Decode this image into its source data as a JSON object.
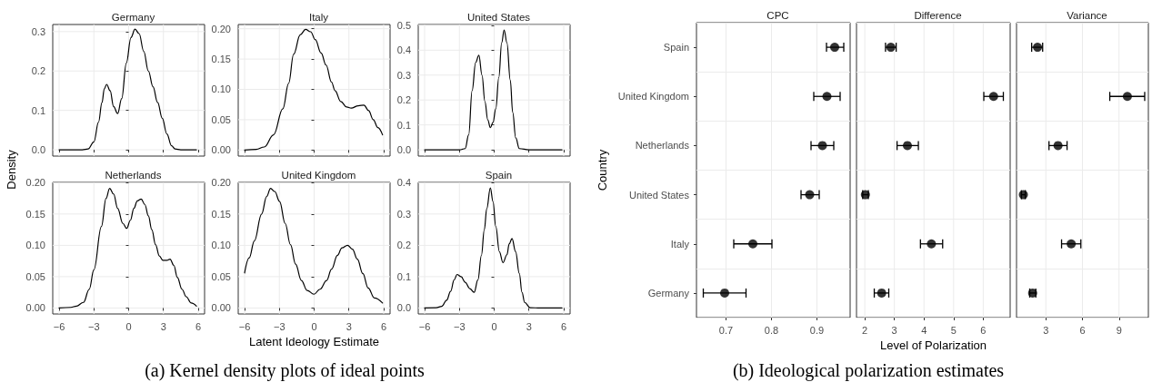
{
  "chart_data": [
    {
      "type": "line",
      "title": "Germany",
      "ylabel": "Density",
      "annotations": [
        "(a) Kernel density plots of ideal points"
      ],
      "color": "#000000",
      "marker": "none",
      "grid": true,
      "tick_labels": "y",
      "x": [
        -6,
        -4,
        -3.5,
        -3,
        -2.6,
        -2.3,
        -2.1,
        -1.9,
        -1.6,
        -1.3,
        -0.95,
        -0.6,
        -0.2,
        0.2,
        0.55,
        0.9,
        1.3,
        1.7,
        2.1,
        2.5,
        2.9,
        3.3,
        3.7,
        4.0,
        4.5,
        5.0,
        5.85
      ],
      "values": [
        0,
        0,
        0.002,
        0.02,
        0.07,
        0.12,
        0.155,
        0.166,
        0.15,
        0.11,
        0.092,
        0.13,
        0.22,
        0.285,
        0.306,
        0.295,
        0.25,
        0.2,
        0.16,
        0.12,
        0.08,
        0.04,
        0.01,
        0.002,
        0,
        0,
        0
      ],
      "xlim": [
        -6.55,
        6.55
      ],
      "xticks": [
        -6,
        -3,
        0,
        3,
        6
      ],
      "ylim": [
        -0.016,
        0.318
      ],
      "yticks": [
        {
          "value": 0,
          "label": "0.0"
        },
        0.1,
        0.2,
        0.3
      ]
    },
    {
      "type": "line",
      "title": "Italy",
      "color": "#000000",
      "marker": "none",
      "grid": true,
      "tick_labels": "y",
      "x": [
        -6,
        -5,
        -4.3,
        -3.5,
        -2.7,
        -2.2,
        -1.77,
        -1.2,
        -0.74,
        -0.3,
        0.1,
        0.6,
        1.03,
        1.5,
        1.8,
        2.3,
        2.8,
        3.2,
        3.8,
        4.3,
        4.7,
        5.1,
        5.5,
        5.9
      ],
      "values": [
        0,
        0.001,
        0.005,
        0.025,
        0.068,
        0.11,
        0.158,
        0.19,
        0.199,
        0.195,
        0.182,
        0.16,
        0.14,
        0.112,
        0.098,
        0.08,
        0.071,
        0.069,
        0.073,
        0.074,
        0.065,
        0.05,
        0.037,
        0.025
      ],
      "xlim": [
        -6.55,
        6.55
      ],
      "xticks": [
        -6,
        -3,
        0,
        3,
        6
      ],
      "ylim": [
        -0.01,
        0.207
      ],
      "yticks": [
        {
          "value": 0,
          "label": "0.00"
        },
        {
          "value": 0.05,
          "label": "0.05"
        },
        {
          "value": 0.1,
          "label": "0.10"
        },
        {
          "value": 0.15,
          "label": "0.15"
        },
        {
          "value": 0.2,
          "label": "0.20"
        }
      ]
    },
    {
      "type": "line",
      "title": "United States",
      "color": "#000000",
      "marker": "none",
      "grid": true,
      "tick_labels": "y",
      "x": [
        -6,
        -3,
        -2.5,
        -2.2,
        -1.9,
        -1.6,
        -1.32,
        -1.05,
        -0.8,
        -0.55,
        -0.33,
        -0.1,
        0.14,
        0.4,
        0.65,
        0.86,
        1.1,
        1.39,
        1.6,
        1.86,
        2.17,
        3,
        5.85
      ],
      "values": [
        0,
        0,
        0.005,
        0.06,
        0.238,
        0.35,
        0.38,
        0.3,
        0.194,
        0.12,
        0.089,
        0.11,
        0.165,
        0.29,
        0.43,
        0.481,
        0.43,
        0.28,
        0.15,
        0.048,
        0.005,
        0,
        0
      ],
      "xlim": [
        -6.55,
        6.55
      ],
      "xticks": [
        -6,
        -3,
        0,
        3,
        6
      ],
      "ylim": [
        -0.025,
        0.503
      ],
      "yticks": [
        {
          "value": 0,
          "label": "0.0"
        },
        0.1,
        0.2,
        0.3,
        0.4,
        0.5
      ]
    },
    {
      "type": "line",
      "title": "Netherlands",
      "color": "#000000",
      "marker": "none",
      "grid": true,
      "x": [
        -6,
        -5,
        -4.5,
        -3.9,
        -3.4,
        -3,
        -2.35,
        -1.95,
        -1.64,
        -1.3,
        -0.95,
        -0.5,
        -0.17,
        0.15,
        0.45,
        0.75,
        1.08,
        1.4,
        1.7,
        2.0,
        2.32,
        2.65,
        2.95,
        3.3,
        3.57,
        3.9,
        4.2,
        4.6,
        4.97,
        5.4,
        5.85
      ],
      "values": [
        0,
        0.001,
        0.003,
        0.009,
        0.03,
        0.061,
        0.13,
        0.175,
        0.191,
        0.182,
        0.159,
        0.135,
        0.127,
        0.14,
        0.159,
        0.171,
        0.174,
        0.165,
        0.147,
        0.125,
        0.101,
        0.083,
        0.076,
        0.076,
        0.078,
        0.068,
        0.049,
        0.03,
        0.018,
        0.008,
        0.003
      ],
      "xlim": [
        -6.55,
        6.55
      ],
      "xticks": [
        -6,
        -3,
        0,
        3,
        6
      ],
      "ylim": [
        -0.0095,
        0.2005
      ],
      "yticks": [
        {
          "value": 0,
          "label": "0.00"
        },
        {
          "value": 0.05,
          "label": "0.05"
        },
        {
          "value": 0.1,
          "label": "0.10"
        },
        {
          "value": 0.15,
          "label": "0.15"
        },
        {
          "value": 0.2,
          "label": "0.20"
        }
      ]
    },
    {
      "type": "line",
      "title": "United Kingdom",
      "xlabel": "Latent Ideology Estimate",
      "color": "#000000",
      "marker": "none",
      "grid": true,
      "x": [
        -6,
        -5.6,
        -5.16,
        -4.53,
        -4.1,
        -3.76,
        -3.4,
        -2.98,
        -2.5,
        -2.04,
        -1.6,
        -1.1,
        -0.6,
        -0.015,
        0.5,
        1.08,
        1.5,
        2.01,
        2.4,
        2.88,
        3.3,
        3.73,
        4.2,
        4.66,
        5.2,
        5.9
      ],
      "values": [
        0.056,
        0.08,
        0.107,
        0.15,
        0.178,
        0.191,
        0.186,
        0.17,
        0.135,
        0.101,
        0.07,
        0.044,
        0.028,
        0.022,
        0.03,
        0.044,
        0.062,
        0.084,
        0.096,
        0.1,
        0.094,
        0.078,
        0.055,
        0.032,
        0.016,
        0.008
      ],
      "xlim": [
        -6.55,
        6.55
      ],
      "xticks": [
        -6,
        -3,
        0,
        3,
        6
      ],
      "ylim": [
        -0.0095,
        0.2005
      ],
      "yticks": [
        {
          "value": 0,
          "label": "0.00"
        },
        {
          "value": 0.05,
          "label": "0.05"
        },
        {
          "value": 0.1,
          "label": "0.10"
        },
        {
          "value": 0.15,
          "label": "0.15"
        },
        {
          "value": 0.2,
          "label": "0.20"
        }
      ]
    },
    {
      "type": "line",
      "title": "Spain",
      "color": "#000000",
      "marker": "none",
      "grid": true,
      "x": [
        -6,
        -5,
        -4.53,
        -4.1,
        -3.76,
        -3.45,
        -3.2,
        -2.85,
        -2.5,
        -2.1,
        -1.73,
        -1.4,
        -1.1,
        -0.85,
        -0.64,
        -0.33,
        -0.1,
        0.14,
        0.45,
        0.76,
        1.1,
        1.3,
        1.54,
        1.85,
        2.17,
        2.4,
        2.63,
        3.1,
        4,
        5.85
      ],
      "values": [
        0,
        0.001,
        0.005,
        0.025,
        0.053,
        0.09,
        0.107,
        0.1,
        0.082,
        0.062,
        0.05,
        0.09,
        0.168,
        0.25,
        0.317,
        0.383,
        0.34,
        0.26,
        0.18,
        0.145,
        0.17,
        0.205,
        0.222,
        0.18,
        0.11,
        0.05,
        0.018,
        0.001,
        0,
        0
      ],
      "xlim": [
        -6.55,
        6.55
      ],
      "xticks": [
        -6,
        -3,
        0,
        3,
        6
      ],
      "ylim": [
        -0.019,
        0.401
      ],
      "yticks": [
        {
          "value": 0,
          "label": "0.0"
        },
        0.1,
        0.2,
        0.3,
        0.4
      ]
    },
    {
      "type": "scatter",
      "title": "CPC",
      "ylabel": "Country",
      "annotations": [
        "(b) Ideological polarization estimates"
      ],
      "orientation": "horizontal",
      "color": "#000000",
      "marker": "circle",
      "grid": true,
      "categories": [
        "Spain",
        "United Kingdom",
        "Netherlands",
        "United States",
        "Italy",
        "Germany"
      ],
      "values": [
        0.939,
        0.922,
        0.912,
        0.884,
        0.759,
        0.697
      ],
      "errors": [
        [
          0.921,
          0.959
        ],
        [
          0.893,
          0.951
        ],
        [
          0.887,
          0.937
        ],
        [
          0.865,
          0.905
        ],
        [
          0.717,
          0.801
        ],
        [
          0.65,
          0.744
        ]
      ],
      "xlim": [
        0.635,
        0.973
      ],
      "xticks": [
        0.7,
        0.8,
        0.9
      ]
    },
    {
      "type": "scatter",
      "title": "Difference",
      "xlabel": "Level of Polarization",
      "orientation": "horizontal",
      "color": "#000000",
      "marker": "circle",
      "grid": true,
      "tick_labels": "x",
      "categories": [
        null,
        null,
        null,
        null,
        null,
        null
      ],
      "values": [
        2.88,
        6.35,
        3.44,
        2.02,
        4.25,
        2.57
      ],
      "errors": [
        [
          2.7,
          3.06
        ],
        [
          6.02,
          6.68
        ],
        [
          3.09,
          3.81
        ],
        [
          1.93,
          2.12
        ],
        [
          3.88,
          4.63
        ],
        [
          2.32,
          2.81
        ]
      ],
      "xlim": [
        1.72,
        6.91
      ],
      "xticks": [
        2,
        3,
        4,
        5,
        6
      ]
    },
    {
      "type": "scatter",
      "title": "Variance",
      "orientation": "horizontal",
      "color": "#000000",
      "marker": "circle",
      "grid": true,
      "tick_labels": "x",
      "categories": [
        null,
        null,
        null,
        null,
        null,
        null
      ],
      "values": [
        2.32,
        9.68,
        4.0,
        1.16,
        5.08,
        1.92
      ],
      "errors": [
        [
          1.84,
          2.74
        ],
        [
          8.24,
          11.1
        ],
        [
          3.26,
          4.74
        ],
        [
          1.0,
          1.32
        ],
        [
          4.29,
          5.87
        ],
        [
          1.68,
          2.18
        ]
      ],
      "xlim": [
        0.6,
        11.4
      ],
      "xticks": [
        3,
        6,
        9
      ]
    }
  ]
}
